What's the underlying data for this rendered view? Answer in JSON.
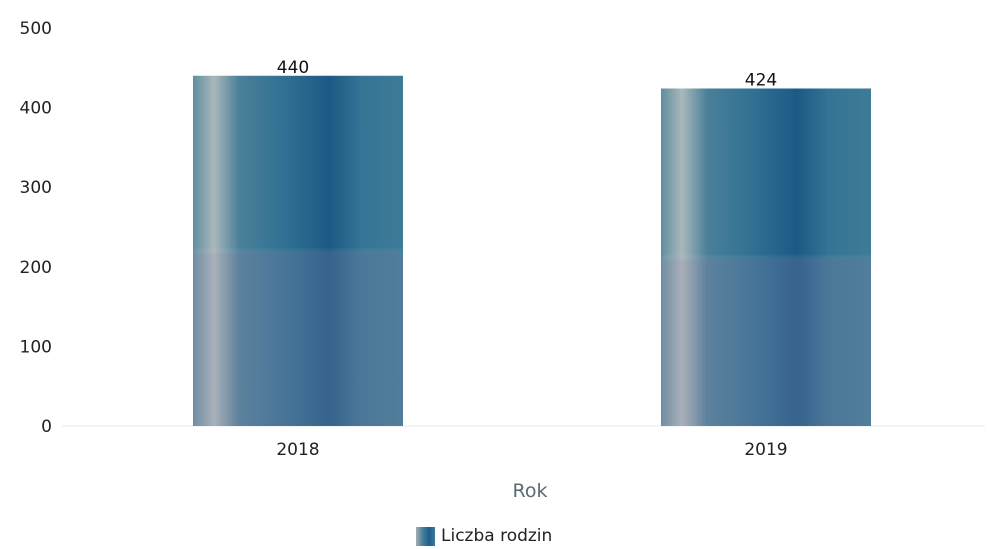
{
  "chart_data": {
    "type": "bar",
    "categories": [
      "2018",
      "2019"
    ],
    "series": [
      {
        "name": "Liczba rodzin",
        "values": [
          440,
          424
        ]
      }
    ],
    "xlabel": "Rok",
    "ylabel": "",
    "ylim": [
      0,
      500
    ],
    "yticks": [
      "0",
      "100",
      "200",
      "300",
      "400",
      "500"
    ],
    "data_labels": [
      "440",
      "424"
    ],
    "grid": false,
    "legend_position": "bottom-center",
    "colors": {
      "bar": "#2f6f92",
      "bar_light": "#a9b8bb",
      "bar_dark": "#1c5a85"
    }
  }
}
